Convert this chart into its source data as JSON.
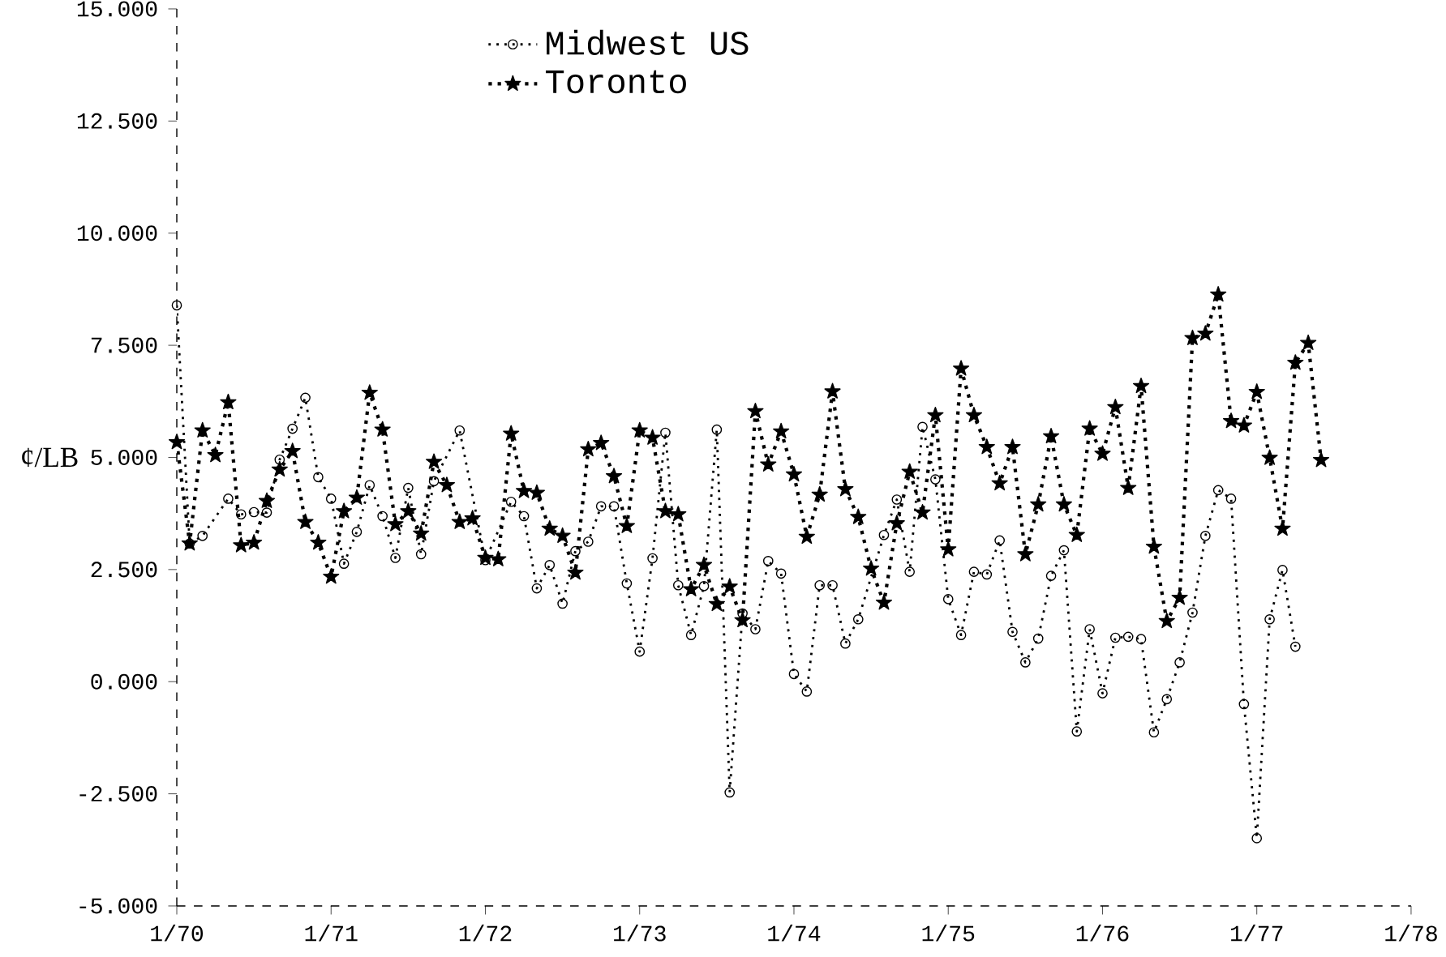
{
  "chart_data": {
    "type": "line",
    "ylabel": "¢/LB",
    "xlim": [
      "1970-01",
      "1978-01"
    ],
    "ylim": [
      -5,
      15
    ],
    "xticks": [
      {
        "value": "1970-01",
        "label": "1/70"
      },
      {
        "value": "1971-01",
        "label": "1/71"
      },
      {
        "value": "1972-01",
        "label": "1/72"
      },
      {
        "value": "1973-01",
        "label": "1/73"
      },
      {
        "value": "1974-01",
        "label": "1/74"
      },
      {
        "value": "1975-01",
        "label": "1/75"
      },
      {
        "value": "1976-01",
        "label": "1/76"
      },
      {
        "value": "1977-01",
        "label": "1/77"
      },
      {
        "value": "1978-01",
        "label": "1/78"
      }
    ],
    "yticks": [
      {
        "value": -5,
        "label": "-5.000"
      },
      {
        "value": -2.5,
        "label": "-2.500"
      },
      {
        "value": 0,
        "label": "0.000"
      },
      {
        "value": 2.5,
        "label": "2.500"
      },
      {
        "value": 5,
        "label": "5.000"
      },
      {
        "value": 7.5,
        "label": "7.500"
      },
      {
        "value": 10,
        "label": "10.000"
      },
      {
        "value": 12.5,
        "label": "12.500"
      },
      {
        "value": 15,
        "label": "15.000"
      }
    ],
    "legend": "top",
    "grid": false,
    "line_style": "dotted",
    "series": [
      {
        "name": "Midwest US",
        "color": "#000000",
        "marker": "circle",
        "x": [
          "1970-01",
          "1970-02",
          "1970-03",
          "1970-05",
          "1970-06",
          "1970-07",
          "1970-08",
          "1970-09",
          "1970-10",
          "1970-11",
          "1970-12",
          "1971-01",
          "1971-02",
          "1971-03",
          "1971-04",
          "1971-05",
          "1971-06",
          "1971-07",
          "1971-08",
          "1971-09",
          "1971-11",
          "1972-01",
          "1972-03",
          "1972-04",
          "1972-05",
          "1972-06",
          "1972-07",
          "1972-08",
          "1972-09",
          "1972-10",
          "1972-11",
          "1972-12",
          "1973-01",
          "1973-02",
          "1973-03",
          "1973-04",
          "1973-05",
          "1973-06",
          "1973-07",
          "1973-08",
          "1973-09",
          "1973-10",
          "1973-11",
          "1973-12",
          "1974-01",
          "1974-02",
          "1974-03",
          "1974-04",
          "1974-05",
          "1974-06",
          "1974-08",
          "1974-09",
          "1974-10",
          "1974-11",
          "1974-12",
          "1975-01",
          "1975-02",
          "1975-03",
          "1975-04",
          "1975-05",
          "1975-06",
          "1975-07",
          "1975-08",
          "1975-09",
          "1975-10",
          "1975-11",
          "1975-12",
          "1976-01",
          "1976-02",
          "1976-03",
          "1976-04",
          "1976-05",
          "1976-06",
          "1976-07",
          "1976-08",
          "1976-09",
          "1976-10",
          "1976-11",
          "1976-12",
          "1977-01",
          "1977-02",
          "1977-03",
          "1977-04"
        ],
        "values": [
          8.39,
          3.08,
          3.25,
          4.08,
          3.73,
          3.78,
          3.77,
          4.95,
          5.64,
          6.33,
          4.56,
          4.08,
          2.63,
          3.34,
          4.38,
          3.69,
          2.76,
          4.32,
          2.84,
          4.47,
          5.6,
          2.71,
          4.01,
          3.69,
          2.08,
          2.6,
          1.74,
          2.91,
          3.12,
          3.91,
          3.91,
          2.19,
          0.67,
          2.75,
          5.55,
          2.15,
          1.04,
          2.13,
          5.62,
          -2.47,
          1.52,
          1.17,
          2.69,
          2.41,
          0.17,
          -0.22,
          2.15,
          2.15,
          0.85,
          1.39,
          3.27,
          4.06,
          2.45,
          5.68,
          4.51,
          1.84,
          1.04,
          2.45,
          2.39,
          3.15,
          1.11,
          0.43,
          0.96,
          2.36,
          2.93,
          -1.11,
          1.17,
          -0.26,
          0.98,
          1.0,
          0.95,
          -1.13,
          -0.39,
          0.43,
          1.54,
          3.25,
          4.27,
          4.08,
          -0.5,
          -3.49,
          1.39,
          2.49,
          0.78
        ]
      },
      {
        "name": "Toronto",
        "color": "#000000",
        "marker": "star",
        "x": [
          "1970-01",
          "1970-02",
          "1970-03",
          "1970-04",
          "1970-05",
          "1970-06",
          "1970-07",
          "1970-08",
          "1970-09",
          "1970-10",
          "1970-11",
          "1970-12",
          "1971-01",
          "1971-02",
          "1971-03",
          "1971-04",
          "1971-05",
          "1971-06",
          "1971-07",
          "1971-08",
          "1971-09",
          "1971-10",
          "1971-11",
          "1971-12",
          "1972-01",
          "1972-02",
          "1972-03",
          "1972-04",
          "1972-05",
          "1972-06",
          "1972-07",
          "1972-08",
          "1972-09",
          "1972-10",
          "1972-11",
          "1972-12",
          "1973-01",
          "1973-02",
          "1973-03",
          "1973-04",
          "1973-05",
          "1973-06",
          "1973-07",
          "1973-08",
          "1973-09",
          "1973-10",
          "1973-11",
          "1973-12",
          "1974-01",
          "1974-02",
          "1974-03",
          "1974-04",
          "1974-05",
          "1974-06",
          "1974-07",
          "1974-08",
          "1974-09",
          "1974-10",
          "1974-11",
          "1974-12",
          "1975-01",
          "1975-02",
          "1975-03",
          "1975-04",
          "1975-05",
          "1975-06",
          "1975-07",
          "1975-08",
          "1975-09",
          "1975-10",
          "1975-11",
          "1975-12",
          "1976-01",
          "1976-02",
          "1976-03",
          "1976-04",
          "1976-05",
          "1976-06",
          "1976-07",
          "1976-08",
          "1976-09",
          "1976-10",
          "1976-11",
          "1976-12",
          "1977-01",
          "1977-02",
          "1977-03",
          "1977-04",
          "1977-05",
          "1977-06"
        ],
        "values": [
          5.34,
          3.08,
          5.6,
          5.05,
          6.23,
          3.04,
          3.1,
          4.03,
          4.73,
          5.14,
          3.56,
          3.1,
          2.34,
          3.8,
          4.1,
          6.44,
          5.62,
          3.51,
          3.8,
          3.3,
          4.9,
          4.38,
          3.56,
          3.64,
          2.76,
          2.73,
          5.53,
          4.25,
          4.21,
          3.41,
          3.25,
          2.43,
          5.18,
          5.32,
          4.58,
          3.47,
          5.6,
          5.44,
          3.8,
          3.73,
          2.06,
          2.6,
          1.73,
          2.12,
          1.37,
          6.03,
          4.84,
          5.58,
          4.62,
          3.23,
          4.17,
          6.47,
          4.29,
          3.67,
          2.52,
          1.76,
          3.53,
          4.68,
          3.77,
          5.94,
          2.95,
          6.98,
          5.94,
          5.23,
          4.42,
          5.23,
          2.84,
          3.95,
          5.47,
          3.95,
          3.27,
          5.64,
          5.08,
          6.12,
          4.32,
          6.59,
          3.01,
          1.35,
          1.87,
          7.66,
          7.76,
          8.63,
          5.81,
          5.71,
          6.46,
          4.99,
          3.41,
          7.11,
          7.55,
          4.94
        ]
      }
    ]
  }
}
